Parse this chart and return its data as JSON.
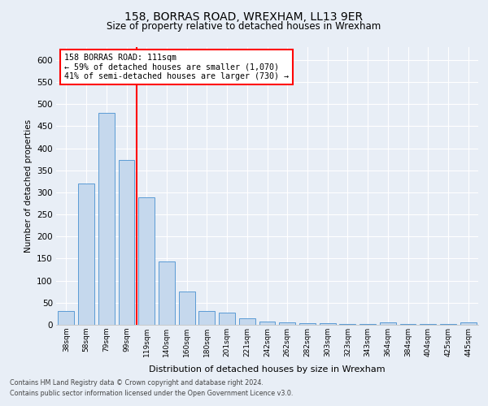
{
  "title1": "158, BORRAS ROAD, WREXHAM, LL13 9ER",
  "title2": "Size of property relative to detached houses in Wrexham",
  "xlabel": "Distribution of detached houses by size in Wrexham",
  "ylabel": "Number of detached properties",
  "categories": [
    "38sqm",
    "58sqm",
    "79sqm",
    "99sqm",
    "119sqm",
    "140sqm",
    "160sqm",
    "180sqm",
    "201sqm",
    "221sqm",
    "242sqm",
    "262sqm",
    "282sqm",
    "303sqm",
    "323sqm",
    "343sqm",
    "364sqm",
    "384sqm",
    "404sqm",
    "425sqm",
    "445sqm"
  ],
  "values": [
    31,
    320,
    481,
    373,
    288,
    143,
    75,
    31,
    28,
    15,
    8,
    5,
    4,
    3,
    1,
    1,
    5,
    1,
    1,
    1,
    5
  ],
  "bar_color": "#c5d8ed",
  "bar_edge_color": "#5b9bd5",
  "vline_pos": 3.5,
  "vline_color": "red",
  "annotation_line1": "158 BORRAS ROAD: 111sqm",
  "annotation_line2": "← 59% of detached houses are smaller (1,070)",
  "annotation_line3": "41% of semi-detached houses are larger (730) →",
  "ylim": [
    0,
    630
  ],
  "yticks": [
    0,
    50,
    100,
    150,
    200,
    250,
    300,
    350,
    400,
    450,
    500,
    550,
    600
  ],
  "footnote1": "Contains HM Land Registry data © Crown copyright and database right 2024.",
  "footnote2": "Contains public sector information licensed under the Open Government Licence v3.0.",
  "bg_color": "#e8eef6",
  "grid_color": "white"
}
